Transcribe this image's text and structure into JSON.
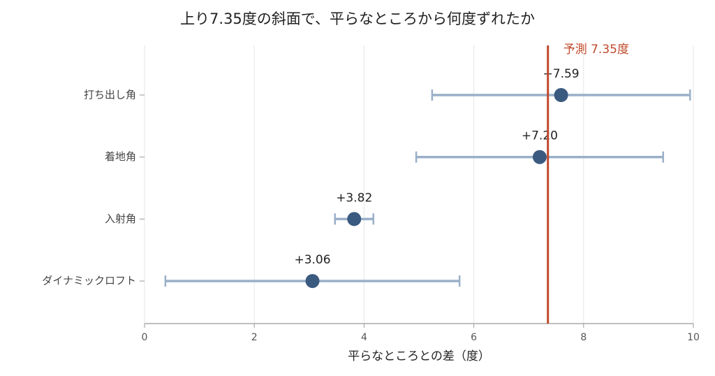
{
  "chart_data": {
    "type": "dot_errorbar",
    "title": "上り7.35度の斜面で、平らなところから何度ずれたか",
    "x_label": "平らなところとの差（度）",
    "categories": [
      "打ち出し角",
      "着地角",
      "入射角",
      "ダイナミックロフト"
    ],
    "values": [
      7.59,
      7.2,
      3.82,
      3.06
    ],
    "value_labels": [
      "+7.59",
      "+7.20",
      "+3.82",
      "+3.06"
    ],
    "errors": [
      2.35,
      2.25,
      0.35,
      2.68
    ],
    "color": "#3b5a80",
    "error_color": "#9ab0c8",
    "reference": {
      "value": 7.35,
      "label": "予測 7.35度",
      "color": "#c0492b"
    },
    "xlim": [
      0,
      10
    ],
    "xticks": [
      0,
      2,
      4,
      6,
      8,
      10
    ],
    "grid": true
  }
}
